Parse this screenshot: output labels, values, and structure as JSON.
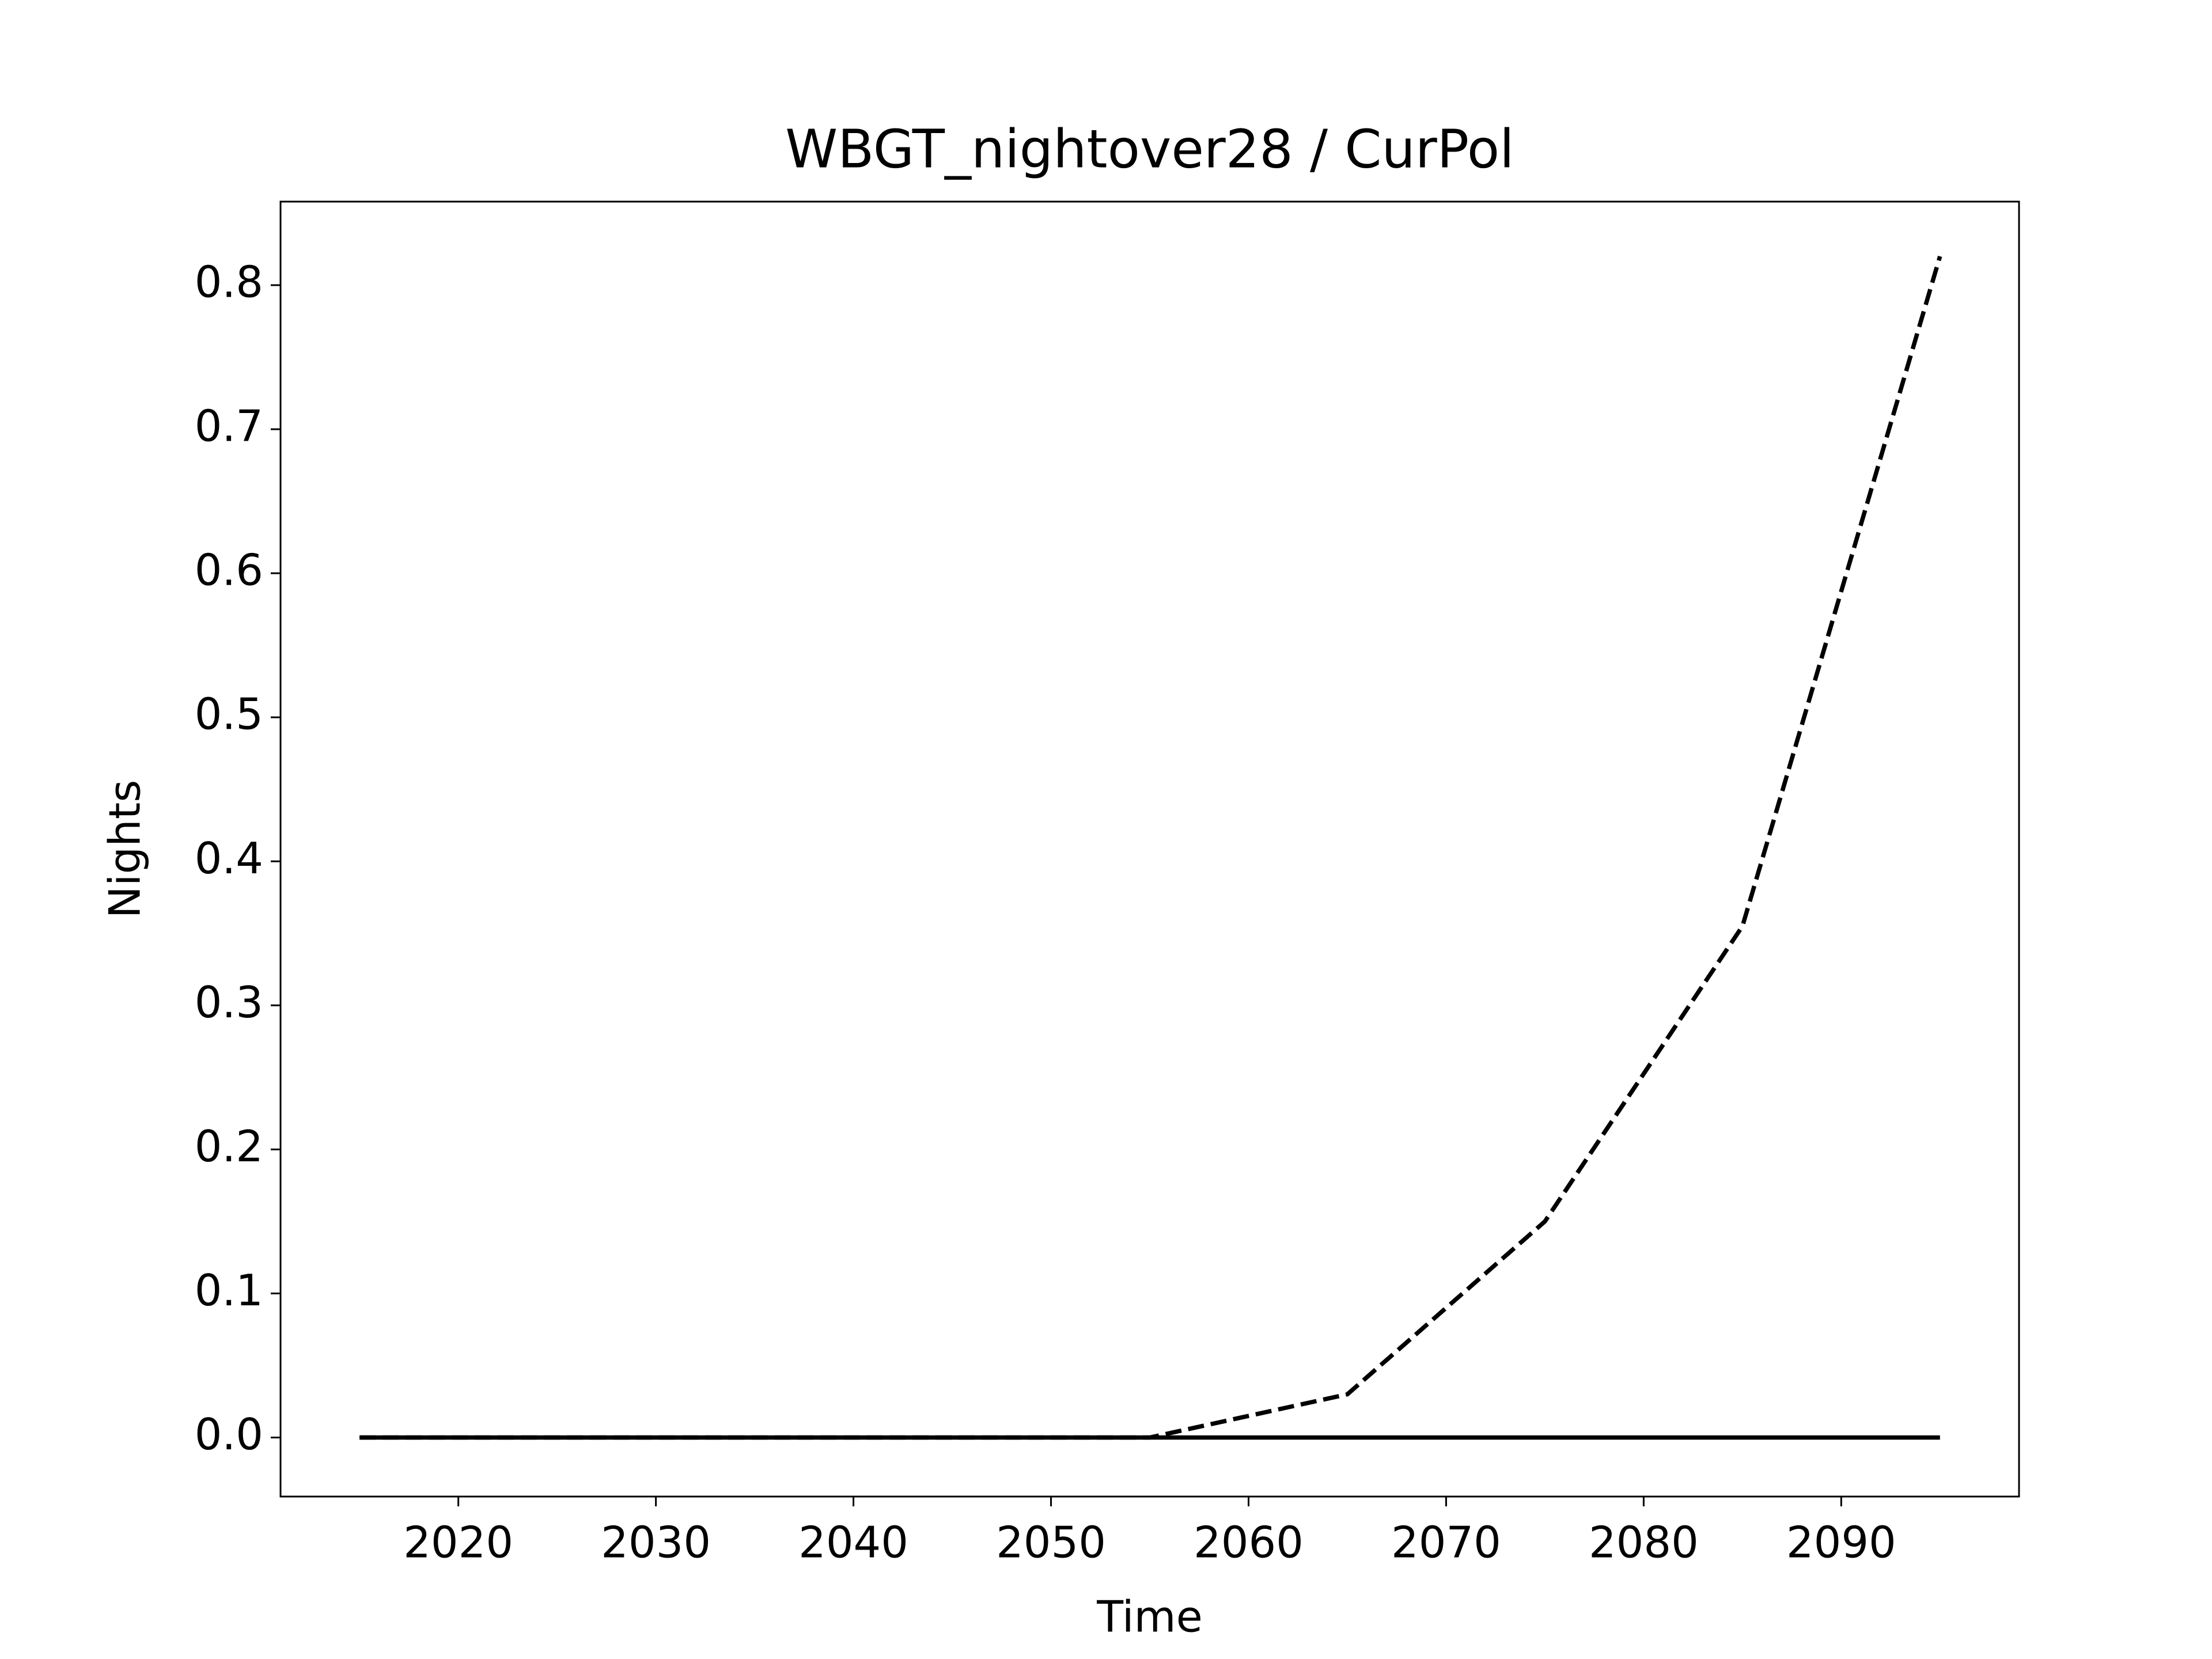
{
  "chart_data": {
    "type": "line",
    "title": "WBGT_nightover28 / CurPol",
    "x_label": "Time",
    "y_label": "Nights",
    "x": [
      2015,
      2025,
      2035,
      2045,
      2055,
      2065,
      2075,
      2085,
      2095
    ],
    "series": [
      {
        "color": "#000000",
        "linestyle": "solid",
        "values": [
          0,
          0,
          0,
          0,
          0,
          0,
          0,
          0,
          0
        ]
      },
      {
        "color": "#000000",
        "linestyle": "dashed",
        "values": [
          0,
          0,
          0,
          0,
          0,
          0.03,
          0.15,
          0.355,
          0.82
        ]
      }
    ],
    "xlim": [
      2011,
      2099
    ],
    "xticks": [
      2020,
      2030,
      2040,
      2050,
      2060,
      2070,
      2080,
      2090
    ],
    "ylim": [
      -0.041,
      0.858
    ],
    "yticks": [
      {
        "value": 0,
        "label": "0.0"
      },
      0.1,
      0.2,
      0.3,
      0.4,
      0.5,
      0.6,
      0.7,
      0.8
    ],
    "grid": false
  }
}
